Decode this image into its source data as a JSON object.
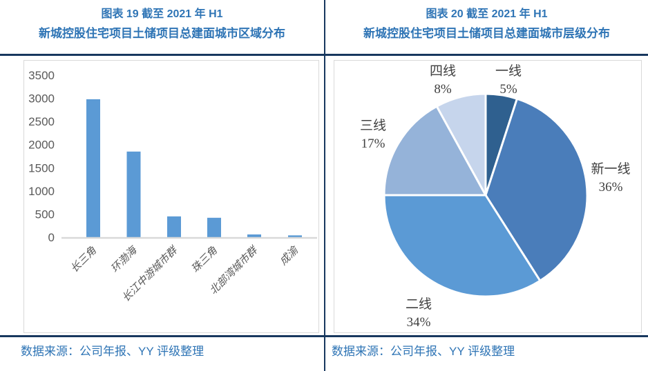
{
  "colors": {
    "title_blue": "#2E74B5",
    "rule_navy": "#17375E",
    "source_blue": "#2E74B5",
    "axis_text_gray": "#595959",
    "pie_label_gray": "#404040",
    "chart_border_gray": "#D9D9D9",
    "axis_line_gray": "#D9D9D9",
    "bar_fill_blue": "#5B9AD5"
  },
  "left_panel": {
    "title_line1": "图表 19 截至 2021 年 H1",
    "title_line2": "新城控股住宅项目土储项目总建面城市区域分布",
    "source": "数据来源：公司年报、YY 评级整理"
  },
  "right_panel": {
    "title_line1": "图表 20 截至 2021 年 H1",
    "title_line2": "新城控股住宅项目土储项目总建面城市层级分布",
    "source": "数据来源：公司年报、YY 评级整理"
  },
  "chart_data": [
    {
      "type": "bar",
      "title": "新城控股住宅项目土储项目总建面城市区域分布",
      "categories": [
        "长三角",
        "环渤海",
        "长江中游城市群",
        "珠三角",
        "北部湾城市群",
        "成渝"
      ],
      "values": [
        2980,
        1850,
        450,
        420,
        60,
        40
      ],
      "xlabel": "",
      "ylabel": "",
      "ylim": [
        0,
        3500
      ],
      "ytick_step": 500,
      "yticks": [
        0,
        500,
        1000,
        1500,
        2000,
        2500,
        3000,
        3500
      ],
      "grid": false,
      "legend": "none",
      "bar_color": "#5B9AD5"
    },
    {
      "type": "pie",
      "title": "新城控股住宅项目土储项目总建面城市层级分布",
      "labels": [
        "一线",
        "新一线",
        "二线",
        "三线",
        "四线"
      ],
      "values": [
        5,
        36,
        34,
        17,
        8
      ],
      "percent_labels": [
        "5%",
        "36%",
        "34%",
        "17%",
        "8%"
      ],
      "colors": [
        "#2F608F",
        "#4A7DBA",
        "#5B9AD5",
        "#95B3D9",
        "#C6D5EC"
      ],
      "slice_border_color": "#FFFFFF",
      "start_angle_deg": 0,
      "direction": "clockwise",
      "legend": "none",
      "label_position": "outside"
    }
  ]
}
